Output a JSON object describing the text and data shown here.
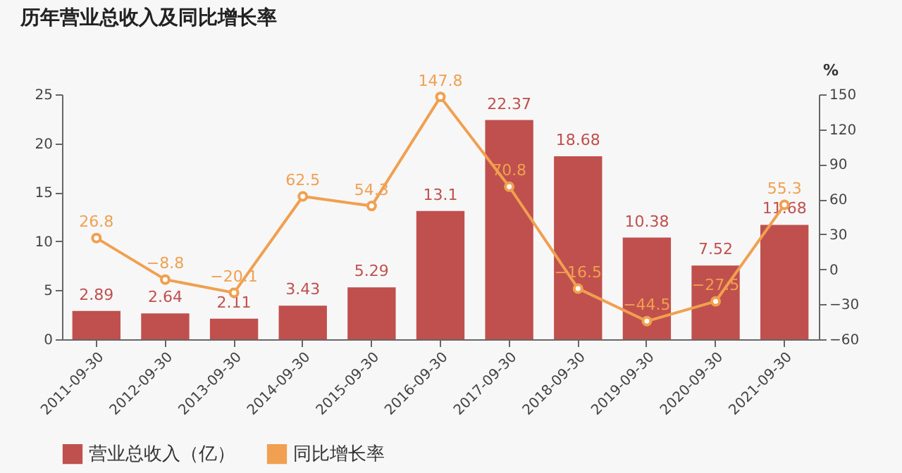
{
  "chart_data": {
    "type": "bar",
    "title": "历年营业总收入及同比增长率",
    "categories": [
      "2011-09-30",
      "2012-09-30",
      "2013-09-30",
      "2014-09-30",
      "2015-09-30",
      "2016-09-30",
      "2017-09-30",
      "2018-09-30",
      "2019-09-30",
      "2020-09-30",
      "2021-09-30"
    ],
    "series": [
      {
        "name": "营业总收入（亿）",
        "color": "#c0504d",
        "values": [
          2.89,
          2.64,
          2.11,
          3.43,
          5.29,
          13.1,
          22.37,
          18.68,
          10.38,
          7.52,
          11.68
        ],
        "value_labels": [
          "2.89",
          "2.64",
          "2.11",
          "3.43",
          "5.29",
          "13.1",
          "22.37",
          "18.68",
          "10.38",
          "7.52",
          "11.68"
        ]
      },
      {
        "name": "同比增长率",
        "type": "line",
        "axis": "y2",
        "color": "#f0a050",
        "values": [
          26.8,
          -8.8,
          -20.1,
          62.5,
          54.3,
          147.8,
          70.8,
          -16.5,
          -44.5,
          -27.5,
          55.3
        ],
        "value_labels": [
          "26.8",
          "−8.8",
          "−20.1",
          "62.5",
          "54.3",
          "147.8",
          "70.8",
          "−16.5",
          "−44.5",
          "−27.5",
          "55.3"
        ]
      }
    ],
    "ylim": [
      0,
      25
    ],
    "yticks": [
      0,
      5,
      10,
      15,
      20,
      25
    ],
    "y2lim": [
      -60,
      150
    ],
    "y2ticks": [
      -60,
      -30,
      0,
      30,
      60,
      90,
      120,
      150
    ],
    "y2label": "%",
    "marker": "circle",
    "legend": "bottom"
  }
}
